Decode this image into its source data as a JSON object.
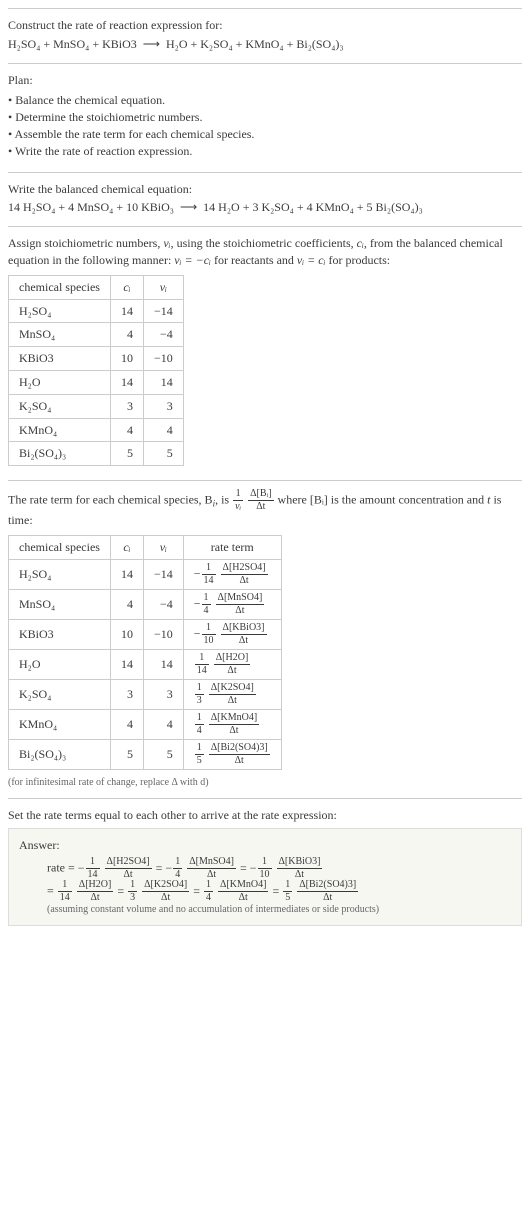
{
  "header": {
    "prompt": "Construct the rate of reaction expression for:",
    "equation_lhs": "H₂SO₄ + MnSO₄ + KBiO3",
    "equation_rhs": "H₂O + K₂SO₄ + KMnO₄ + Bi₂(SO₄)₃",
    "arrow": "⟶"
  },
  "plan": {
    "label": "Plan:",
    "items": [
      "Balance the chemical equation.",
      "Determine the stoichiometric numbers.",
      "Assemble the rate term for each chemical species.",
      "Write the rate of reaction expression."
    ]
  },
  "balanced": {
    "label": "Write the balanced chemical equation:",
    "equation_lhs": "14 H₂SO₄ + 4 MnSO₄ + 10 KBiO₃",
    "equation_rhs": "14 H₂O + 3 K₂SO₄ + 4 KMnO₄ + 5 Bi₂(SO₄)₃",
    "arrow": "⟶"
  },
  "stoich": {
    "intro_a": "Assign stoichiometric numbers, ",
    "intro_b": ", using the stoichiometric coefficients, ",
    "intro_c": ", from the balanced chemical equation in the following manner: ",
    "intro_d": " for reactants and ",
    "intro_e": " for products:",
    "nu": "νᵢ",
    "ci": "cᵢ",
    "rel_react": "νᵢ = −cᵢ",
    "rel_prod": "νᵢ = cᵢ",
    "table": {
      "headers": [
        "chemical species",
        "cᵢ",
        "νᵢ"
      ],
      "rows": [
        [
          "H₂SO₄",
          "14",
          "−14"
        ],
        [
          "MnSO₄",
          "4",
          "−4"
        ],
        [
          "KBiO3",
          "10",
          "−10"
        ],
        [
          "H₂O",
          "14",
          "14"
        ],
        [
          "K₂SO₄",
          "3",
          "3"
        ],
        [
          "KMnO₄",
          "4",
          "4"
        ],
        [
          "Bi₂(SO₄)₃",
          "5",
          "5"
        ]
      ]
    }
  },
  "rateterm": {
    "intro_a": "The rate term for each chemical species, B",
    "intro_b": ", is ",
    "intro_c": " where [Bᵢ] is the amount concentration and ",
    "intro_d": " is time:",
    "t": "t",
    "frac1_num": "1",
    "frac1_den": "νᵢ",
    "frac2_num": "Δ[Bᵢ]",
    "frac2_den": "Δt",
    "table": {
      "headers": [
        "chemical species",
        "cᵢ",
        "νᵢ",
        "rate term"
      ],
      "rows": [
        {
          "sp": "H₂SO₄",
          "c": "14",
          "v": "−14",
          "sign": "−",
          "n": "14",
          "top": "Δ[H2SO4]"
        },
        {
          "sp": "MnSO₄",
          "c": "4",
          "v": "−4",
          "sign": "−",
          "n": "4",
          "top": "Δ[MnSO4]"
        },
        {
          "sp": "KBiO3",
          "c": "10",
          "v": "−10",
          "sign": "−",
          "n": "10",
          "top": "Δ[KBiO3]"
        },
        {
          "sp": "H₂O",
          "c": "14",
          "v": "14",
          "sign": "",
          "n": "14",
          "top": "Δ[H2O]"
        },
        {
          "sp": "K₂SO₄",
          "c": "3",
          "v": "3",
          "sign": "",
          "n": "3",
          "top": "Δ[K2SO4]"
        },
        {
          "sp": "KMnO₄",
          "c": "4",
          "v": "4",
          "sign": "",
          "n": "4",
          "top": "Δ[KMnO4]"
        },
        {
          "sp": "Bi₂(SO₄)₃",
          "c": "5",
          "v": "5",
          "sign": "",
          "n": "5",
          "top": "Δ[Bi2(SO4)3]"
        }
      ]
    },
    "note": "(for infinitesimal rate of change, replace Δ with d)"
  },
  "final": {
    "intro": "Set the rate terms equal to each other to arrive at the rate expression:",
    "answer_label": "Answer:",
    "rate_word": "rate = ",
    "terms1": [
      {
        "sign": "−",
        "n": "14",
        "top": "Δ[H2SO4]"
      },
      {
        "sign": "−",
        "n": "4",
        "top": "Δ[MnSO4]"
      },
      {
        "sign": "−",
        "n": "10",
        "top": "Δ[KBiO3]"
      }
    ],
    "terms2": [
      {
        "sign": "",
        "n": "14",
        "top": "Δ[H2O]"
      },
      {
        "sign": "",
        "n": "3",
        "top": "Δ[K2SO4]"
      },
      {
        "sign": "",
        "n": "4",
        "top": "Δ[KMnO4]"
      },
      {
        "sign": "",
        "n": "5",
        "top": "Δ[Bi2(SO4)3]"
      }
    ],
    "eq": " = ",
    "dt": "Δt",
    "one": "1",
    "note": "(assuming constant volume and no accumulation of intermediates or side products)"
  }
}
